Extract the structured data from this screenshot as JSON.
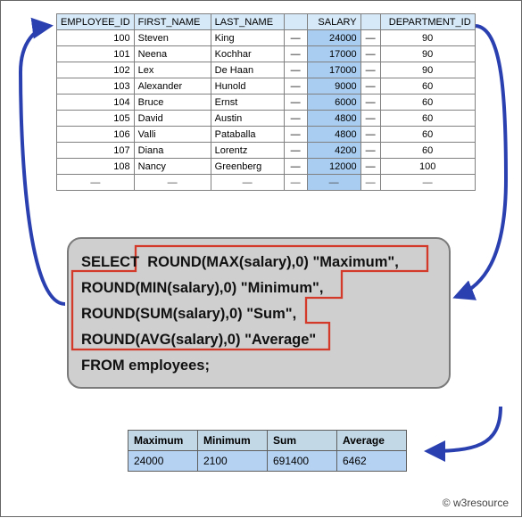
{
  "source_table": {
    "columns": [
      "EMPLOYEE_ID",
      "FIRST_NAME",
      "LAST_NAME",
      "",
      "SALARY",
      "",
      "DEPARTMENT_ID"
    ],
    "column_align": [
      "right",
      "left",
      "left",
      "center",
      "right",
      "center",
      "center"
    ],
    "rows": [
      [
        "100",
        "Steven",
        "King",
        "—",
        "24000",
        "—",
        "90"
      ],
      [
        "101",
        "Neena",
        "Kochhar",
        "—",
        "17000",
        "—",
        "90"
      ],
      [
        "102",
        "Lex",
        "De Haan",
        "—",
        "17000",
        "—",
        "90"
      ],
      [
        "103",
        "Alexander",
        "Hunold",
        "—",
        "9000",
        "—",
        "60"
      ],
      [
        "104",
        "Bruce",
        "Ernst",
        "—",
        "6000",
        "—",
        "60"
      ],
      [
        "105",
        "David",
        "Austin",
        "—",
        "4800",
        "—",
        "60"
      ],
      [
        "106",
        "Valli",
        "Pataballa",
        "—",
        "4800",
        "—",
        "60"
      ],
      [
        "107",
        "Diana",
        "Lorentz",
        "—",
        "4200",
        "—",
        "60"
      ],
      [
        "108",
        "Nancy",
        "Greenberg",
        "—",
        "12000",
        "—",
        "100"
      ]
    ],
    "empty_row": [
      "—",
      "—",
      "—",
      "—",
      "—",
      "—",
      "—"
    ],
    "header_bg": "#d6e9f8",
    "salary_bg": "#a9cdf0",
    "border_color": "#808080",
    "font_size": 11
  },
  "sql": {
    "lines": [
      "SELECT  ROUND(MAX(salary),0) \"Maximum\",",
      "ROUND(MIN(salary),0) \"Minimum\",",
      "ROUND(SUM(salary),0) \"Sum\",",
      "ROUND(AVG(salary),0) \"Average\"",
      "FROM employees;"
    ],
    "panel_bg": "#cfcfcf",
    "panel_border": "#7a7a7a",
    "panel_radius": 16,
    "font_size": 16.5,
    "font_weight": "bold",
    "highlight_border_color": "#d43a2a",
    "highlight_border_width": 2
  },
  "result_table": {
    "columns": [
      "Maximum",
      "Minimum",
      "Sum",
      "Average"
    ],
    "rows": [
      [
        "24000",
        "2100",
        "691400",
        "6462"
      ]
    ],
    "header_bg": "#c2d8e6",
    "cell_bg": "#b6d2f2",
    "border_color": "#5f5f5f",
    "font_size": 12
  },
  "arrows": {
    "color": "#2a3fb0",
    "stroke_width": 4
  },
  "footer": {
    "text": "© w3resource"
  }
}
